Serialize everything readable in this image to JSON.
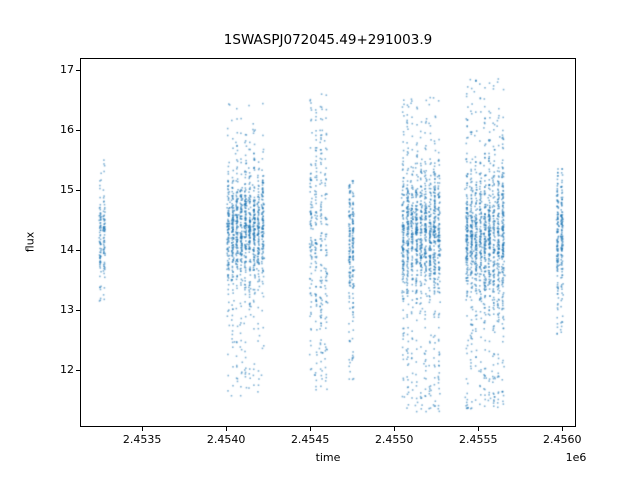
{
  "figure": {
    "title": "1SWASPJ072045.49+291003.9"
  },
  "chart_data": {
    "type": "scatter",
    "title": "1SWASPJ072045.49+291003.9",
    "xlabel": "time",
    "ylabel": "flux",
    "x_offset_label": "1e6",
    "xlim": [
      2453130,
      2456082
    ],
    "ylim": [
      11.05,
      17.2
    ],
    "xticks": [
      2453500,
      2454000,
      2454500,
      2455000,
      2455500,
      2456000
    ],
    "xtick_labels": [
      "2.4535",
      "2.4540",
      "2.4545",
      "2.4550",
      "2.4555",
      "2.4560"
    ],
    "yticks": [
      12,
      13,
      14,
      15,
      16,
      17
    ],
    "ytick_labels": [
      "12",
      "13",
      "14",
      "15",
      "16",
      "17"
    ],
    "grid": false,
    "legend": "none",
    "marker_color": "#1f77b4",
    "marker_alpha": 0.55,
    "marker_size_px": 1.6,
    "seed": 1337,
    "clusters": [
      {
        "name": "night-group-1",
        "x_min": 2453240,
        "x_max": 2453285,
        "columns": 2,
        "count": 150,
        "y_mean": 14.25,
        "y_sigma": 0.38,
        "y_min": 13.15,
        "y_max": 15.7,
        "core_frac": 0.85,
        "low_frac": 0.08,
        "high_frac": 0.07
      },
      {
        "name": "night-group-2",
        "x_min": 2454000,
        "x_max": 2454230,
        "columns": 9,
        "count": 1150,
        "y_mean": 14.3,
        "y_sigma": 0.45,
        "y_min": 11.55,
        "y_max": 16.55,
        "core_frac": 0.8,
        "low_frac": 0.12,
        "high_frac": 0.08
      },
      {
        "name": "night-group-3",
        "x_min": 2454490,
        "x_max": 2454610,
        "columns": 4,
        "count": 330,
        "y_mean": 14.3,
        "y_sigma": 0.75,
        "y_min": 11.65,
        "y_max": 16.6,
        "core_frac": 0.62,
        "low_frac": 0.22,
        "high_frac": 0.16
      },
      {
        "name": "night-group-4",
        "x_min": 2454725,
        "x_max": 2454765,
        "columns": 2,
        "count": 210,
        "y_mean": 14.2,
        "y_sigma": 0.5,
        "y_min": 11.8,
        "y_max": 15.15,
        "core_frac": 0.8,
        "low_frac": 0.15,
        "high_frac": 0.05
      },
      {
        "name": "night-group-5",
        "x_min": 2455040,
        "x_max": 2455280,
        "columns": 9,
        "count": 1250,
        "y_mean": 14.3,
        "y_sigma": 0.5,
        "y_min": 11.3,
        "y_max": 16.55,
        "core_frac": 0.78,
        "low_frac": 0.14,
        "high_frac": 0.08
      },
      {
        "name": "night-group-6",
        "x_min": 2455420,
        "x_max": 2455660,
        "columns": 9,
        "count": 1350,
        "y_mean": 14.2,
        "y_sigma": 0.55,
        "y_min": 11.35,
        "y_max": 16.9,
        "core_frac": 0.76,
        "low_frac": 0.15,
        "high_frac": 0.09
      },
      {
        "name": "night-group-7",
        "x_min": 2455960,
        "x_max": 2456010,
        "columns": 2,
        "count": 250,
        "y_mean": 14.3,
        "y_sigma": 0.5,
        "y_min": 12.6,
        "y_max": 15.35,
        "core_frac": 0.85,
        "low_frac": 0.1,
        "high_frac": 0.05
      }
    ]
  }
}
